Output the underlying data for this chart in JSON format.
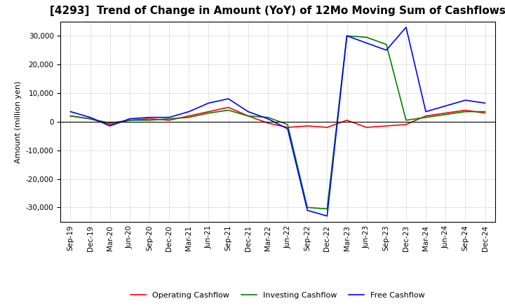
{
  "title": "[4293]  Trend of Change in Amount (YoY) of 12Mo Moving Sum of Cashflows",
  "ylabel": "Amount (million yen)",
  "ylim": [
    -35000,
    35000
  ],
  "yticks": [
    -30000,
    -20000,
    -10000,
    0,
    10000,
    20000,
    30000
  ],
  "x_labels": [
    "Sep-19",
    "Dec-19",
    "Mar-20",
    "Jun-20",
    "Sep-20",
    "Dec-20",
    "Mar-21",
    "Jun-21",
    "Sep-21",
    "Dec-21",
    "Mar-22",
    "Jun-22",
    "Sep-22",
    "Dec-22",
    "Mar-23",
    "Jun-23",
    "Sep-23",
    "Dec-23",
    "Mar-24",
    "Jun-24",
    "Sep-24",
    "Dec-24"
  ],
  "operating_cf": [
    2000,
    1000,
    -1000,
    500,
    1000,
    500,
    2000,
    3500,
    5000,
    2000,
    -500,
    -2000,
    -1500,
    -2000,
    500,
    -2000,
    -1500,
    -1000,
    2000,
    3000,
    4000,
    3000
  ],
  "investing_cf": [
    2000,
    1000,
    -500,
    500,
    500,
    1000,
    1500,
    3000,
    4000,
    2000,
    1500,
    -1000,
    -30000,
    -30500,
    30000,
    29500,
    27000,
    500,
    1500,
    2500,
    3500,
    3500
  ],
  "free_cf": [
    3500,
    1500,
    -1500,
    1000,
    1500,
    1500,
    3500,
    6500,
    8000,
    3500,
    1000,
    -2500,
    -31000,
    -33000,
    30000,
    27500,
    25000,
    33000,
    3500,
    5500,
    7500,
    6500
  ],
  "op_color": "#ff0000",
  "inv_color": "#008000",
  "free_color": "#0000ff",
  "bg_color": "#ffffff",
  "grid_color": "#aaaaaa",
  "title_fontsize": 11,
  "label_fontsize": 8,
  "tick_fontsize": 7.5
}
